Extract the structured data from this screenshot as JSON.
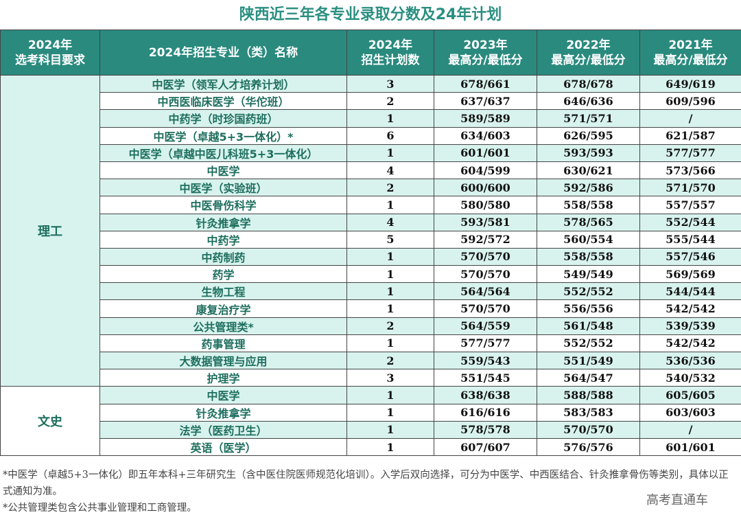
{
  "title": "陕西近三年各专业录取分数及24年计划",
  "headers": [
    [
      "2024年",
      "选考科目要求"
    ],
    [
      "2024年招生专业（类）名称",
      ""
    ],
    [
      "2024年",
      "招生计划数"
    ],
    [
      "2023年",
      "最高分/最低分"
    ],
    [
      "2022年",
      "最高分/最低分"
    ],
    [
      "2021年",
      "最高分/最低分"
    ]
  ],
  "groups": [
    {
      "label": "理工",
      "rows": [
        [
          "中医学（领军人才培养计划）",
          "3",
          "678/661",
          "678/678",
          "649/619"
        ],
        [
          "中西医临床医学（华佗班）",
          "2",
          "637/637",
          "646/636",
          "609/596"
        ],
        [
          "中药学（时珍国药班）",
          "1",
          "589/589",
          "571/571",
          "/"
        ],
        [
          "中医学（卓越5+3一体化）*",
          "6",
          "634/603",
          "626/595",
          "621/587"
        ],
        [
          "中医学（卓越中医儿科班5+3一体化）",
          "1",
          "601/601",
          "593/593",
          "577/577"
        ],
        [
          "中医学",
          "4",
          "604/599",
          "630/621",
          "573/566"
        ],
        [
          "中医学（实验班）",
          "2",
          "600/600",
          "592/586",
          "571/570"
        ],
        [
          "中医骨伤科学",
          "1",
          "580/580",
          "558/558",
          "557/557"
        ],
        [
          "针灸推拿学",
          "4",
          "593/581",
          "578/565",
          "552/544"
        ],
        [
          "中药学",
          "5",
          "592/572",
          "560/554",
          "555/544"
        ],
        [
          "中药制药",
          "1",
          "570/570",
          "558/558",
          "557/546"
        ],
        [
          "药学",
          "1",
          "570/570",
          "549/549",
          "569/569"
        ],
        [
          "生物工程",
          "1",
          "564/564",
          "552/552",
          "544/544"
        ],
        [
          "康复治疗学",
          "1",
          "570/570",
          "556/556",
          "542/542"
        ],
        [
          "公共管理类*",
          "2",
          "564/559",
          "561/548",
          "539/539"
        ],
        [
          "药事管理",
          "1",
          "577/577",
          "552/552",
          "542/542"
        ],
        [
          "大数据管理与应用",
          "2",
          "559/543",
          "551/549",
          "536/536"
        ],
        [
          "护理学",
          "3",
          "551/545",
          "564/547",
          "540/532"
        ]
      ]
    },
    {
      "label": "文史",
      "rows": [
        [
          "中医学",
          "1",
          "638/638",
          "588/588",
          "605/605"
        ],
        [
          "针灸推拿学",
          "1",
          "616/616",
          "583/583",
          "603/603"
        ],
        [
          "法学（医药卫生）",
          "1",
          "578/578",
          "570/570",
          "/"
        ],
        [
          "英语（医学）",
          "1",
          "607/607",
          "576/576",
          "601/601"
        ]
      ]
    }
  ],
  "notes": [
    "*中医学（卓越5+3一体化）即五年本科+三年研究生（含中医住院医师规范化培训）。入学后双向选择，可分为中医学、中西医结合、针灸推拿骨伤等类别，具体以正式通知为准。",
    "*公共管理类包含公共事业管理和工商管理。"
  ],
  "watermark": "高考直通车",
  "colors": {
    "header_bg": "#2a8a7e",
    "row_alt": "#d8f3ee",
    "title": "#2a8f80"
  }
}
